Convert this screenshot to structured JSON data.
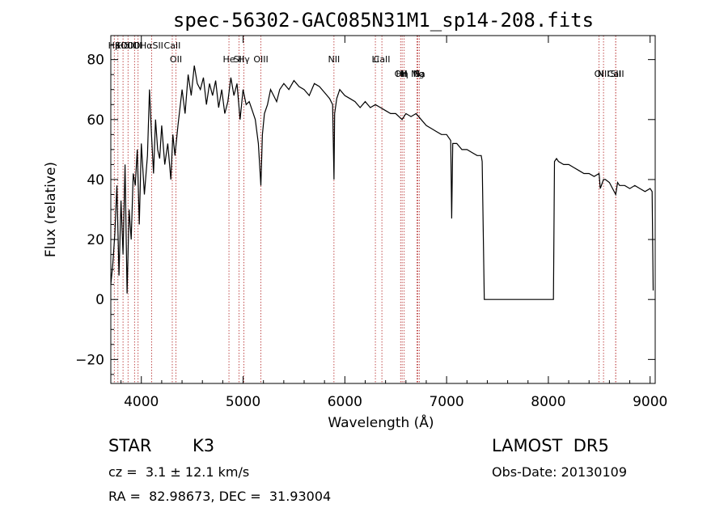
{
  "chart_data": {
    "type": "line",
    "title": "spec-56302-GAC085N31M1_sp14-208.fits",
    "xlabel": "Wavelength (Å)",
    "ylabel": "Flux (relative)",
    "xlim": [
      3700,
      9050
    ],
    "ylim": [
      -28,
      88
    ],
    "xticks": [
      "4000",
      "5000",
      "6000",
      "7000",
      "8000",
      "9000"
    ],
    "yticks": [
      "−20",
      "0",
      "20",
      "40",
      "60",
      "80"
    ],
    "xtick_values": [
      4000,
      5000,
      6000,
      7000,
      8000,
      9000
    ],
    "ytick_values": [
      -20,
      0,
      20,
      40,
      60,
      80
    ],
    "line_color": "#000000",
    "marker_color": "#b22222",
    "lines": [
      {
        "label": "Hβ",
        "x": 3734,
        "row": 0
      },
      {
        "label": "K",
        "x": 3770,
        "row": 0
      },
      {
        "label": "Hδ",
        "x": 3820,
        "row": 0
      },
      {
        "label": "OIII",
        "x": 3869,
        "row": 0
      },
      {
        "label": "OIII",
        "x": 3933,
        "row": 0
      },
      {
        "label": "OI",
        "x": 3968,
        "row": 0
      },
      {
        "label": "HαSII",
        "x": 4101,
        "row": 0
      },
      {
        "label": "CaII",
        "x": 4304,
        "row": 0
      },
      {
        "label": "OII",
        "x": 4340,
        "row": 1
      },
      {
        "label": "He",
        "x": 4861,
        "row": 1
      },
      {
        "label": "SII",
        "x": 4959,
        "row": 1
      },
      {
        "label": "Hγ",
        "x": 5007,
        "row": 1
      },
      {
        "label": "OIII",
        "x": 5175,
        "row": 1
      },
      {
        "label": "NII",
        "x": 5893,
        "row": 1
      },
      {
        "label": "Li",
        "x": 6300,
        "row": 1
      },
      {
        "label": "CaII",
        "x": 6364,
        "row": 1
      },
      {
        "label": "OII",
        "x": 6548,
        "row": 2
      },
      {
        "label": "Hη",
        "x": 6563,
        "row": 2
      },
      {
        "label": "H",
        "x": 6583,
        "row": 2
      },
      {
        "label": "G",
        "x": 6708,
        "row": 2
      },
      {
        "label": "Mg",
        "x": 6716,
        "row": 2
      },
      {
        "label": "Na",
        "x": 6731,
        "row": 2
      },
      {
        "label": "OI",
        "x": 8498,
        "row": 2
      },
      {
        "label": "NII",
        "x": 8542,
        "row": 2
      },
      {
        "label": "SII",
        "x": 8662,
        "row": 2
      },
      {
        "label": "CaII",
        "x": 8662,
        "row": 2
      }
    ],
    "series": [
      {
        "x": [
          3700,
          3720,
          3740,
          3760,
          3780,
          3800,
          3820,
          3840,
          3860,
          3880,
          3900,
          3920,
          3940,
          3960,
          3980,
          4000,
          4030,
          4060,
          4080,
          4100,
          4120,
          4140,
          4160,
          4180,
          4200,
          4230,
          4260,
          4290,
          4310,
          4330,
          4360,
          4400,
          4430,
          4460,
          4490,
          4520,
          4550,
          4580,
          4610,
          4640,
          4670,
          4700,
          4730,
          4760,
          4790,
          4820,
          4850,
          4880,
          4910,
          4940,
          4970,
          5000,
          5030,
          5060,
          5090,
          5120,
          5150,
          5175,
          5190,
          5210,
          5240,
          5270,
          5300,
          5330,
          5360,
          5400,
          5450,
          5500,
          5550,
          5600,
          5650,
          5700,
          5750,
          5800,
          5850,
          5880,
          5893,
          5900,
          5920,
          5950,
          6000,
          6050,
          6100,
          6150,
          6200,
          6250,
          6300,
          6350,
          6400,
          6450,
          6500,
          6563,
          6600,
          6650,
          6700,
          6750,
          6800,
          6850,
          6900,
          6950,
          7000,
          7040,
          7050,
          7060,
          7100,
          7150,
          7200,
          7250,
          7300,
          7340,
          7350,
          7370,
          7400,
          7500,
          7600,
          7700,
          7800,
          7900,
          8000,
          8050,
          8060,
          8080,
          8100,
          8150,
          8200,
          8250,
          8300,
          8350,
          8400,
          8450,
          8498,
          8510,
          8542,
          8560,
          8600,
          8662,
          8680,
          8700,
          8750,
          8800,
          8850,
          8900,
          8950,
          9000,
          9020,
          9030
        ],
        "values": [
          5,
          12,
          22,
          38,
          8,
          33,
          15,
          45,
          2,
          30,
          20,
          42,
          38,
          50,
          25,
          52,
          35,
          48,
          70,
          55,
          42,
          60,
          50,
          47,
          58,
          45,
          52,
          40,
          55,
          48,
          58,
          70,
          62,
          75,
          68,
          78,
          72,
          70,
          74,
          65,
          72,
          68,
          73,
          64,
          70,
          62,
          66,
          74,
          68,
          72,
          60,
          70,
          65,
          66,
          63,
          60,
          52,
          38,
          55,
          62,
          65,
          70,
          68,
          66,
          70,
          72,
          70,
          73,
          71,
          70,
          68,
          72,
          71,
          69,
          67,
          65,
          40,
          62,
          67,
          70,
          68,
          67,
          66,
          64,
          66,
          64,
          65,
          64,
          63,
          62,
          62,
          60,
          62,
          61,
          62,
          60,
          58,
          57,
          56,
          55,
          55,
          53,
          27,
          52,
          52,
          50,
          50,
          49,
          48,
          48,
          46,
          0,
          0,
          0,
          0,
          0,
          0,
          0,
          0,
          0,
          46,
          47,
          46,
          45,
          45,
          44,
          43,
          42,
          42,
          41,
          42,
          37,
          40,
          40,
          39,
          35,
          39,
          38,
          38,
          37,
          38,
          37,
          36,
          37,
          36,
          3
        ]
      }
    ]
  },
  "footer": {
    "class_label": "STAR",
    "subclass_label": "K3",
    "redshift": "cz =  3.1 ± 12.1 km/s",
    "coordinates": "RA =  82.98673, DEC =  31.93004",
    "survey": "LAMOST  DR5",
    "obs_date": "Obs-Date: 20130109"
  }
}
